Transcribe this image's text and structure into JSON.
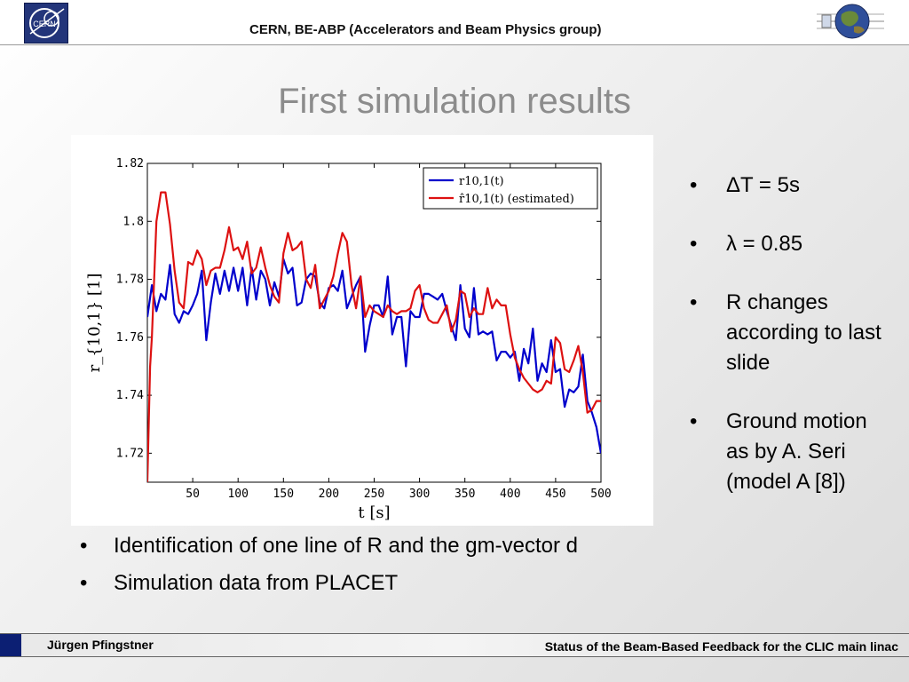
{
  "header": {
    "title": "CERN, BE-ABP (Accelerators and Beam Physics group)",
    "logo_left": "CERN",
    "logo_right_icon": "globe-icon"
  },
  "slide": {
    "title": "First simulation results"
  },
  "right_bullets": [
    {
      "text": "ΔT = 5s"
    },
    {
      "text": "λ = 0.85"
    },
    {
      "text": "R changes according to last slide"
    },
    {
      "text": "Ground motion as by A. Seri (model A [8])"
    }
  ],
  "left_bullets": [
    {
      "text": "Identification of one line of R and the gm-vector d"
    },
    {
      "text": "Simulation data from PLACET"
    }
  ],
  "footer": {
    "author": "Jürgen Pfingstner",
    "talk_title": "Status of the Beam-Based Feedback for the CLIC main linac"
  },
  "colors": {
    "series_true": "#0000cc",
    "series_est": "#dd1111",
    "footer_block": "#0c1f73",
    "title_grey": "#8c8c8c"
  },
  "chart_data": {
    "type": "line",
    "xlabel": "t [s]",
    "ylabel": "r_{10,1} [1]",
    "xlim": [
      0,
      500
    ],
    "ylim": [
      1.71,
      1.82
    ],
    "xticks": [
      50,
      100,
      150,
      200,
      250,
      300,
      350,
      400,
      450,
      500
    ],
    "yticks": [
      1.72,
      1.74,
      1.76,
      1.78,
      1.8,
      1.82
    ],
    "ytick_labels": [
      "1.72",
      "1.74",
      "1.76",
      "1.78",
      "1.8",
      "1.82"
    ],
    "legend_position": "top-right",
    "series": [
      {
        "name": "r10,1(t)",
        "color": "#0000cc",
        "x": [
          0,
          5,
          10,
          15,
          20,
          25,
          30,
          35,
          40,
          45,
          50,
          55,
          60,
          65,
          70,
          75,
          80,
          85,
          90,
          95,
          100,
          105,
          110,
          115,
          120,
          125,
          130,
          135,
          140,
          145,
          150,
          155,
          160,
          165,
          170,
          175,
          180,
          185,
          190,
          195,
          200,
          205,
          210,
          215,
          220,
          225,
          230,
          235,
          240,
          245,
          250,
          255,
          260,
          265,
          270,
          275,
          280,
          285,
          290,
          295,
          300,
          305,
          310,
          315,
          320,
          325,
          330,
          335,
          340,
          345,
          350,
          355,
          360,
          365,
          370,
          375,
          380,
          385,
          390,
          395,
          400,
          405,
          410,
          415,
          420,
          425,
          430,
          435,
          440,
          445,
          450,
          455,
          460,
          465,
          470,
          475,
          480,
          485,
          490,
          495,
          500
        ],
        "y": [
          1.767,
          1.778,
          1.769,
          1.775,
          1.773,
          1.785,
          1.768,
          1.765,
          1.769,
          1.768,
          1.771,
          1.775,
          1.783,
          1.759,
          1.772,
          1.782,
          1.775,
          1.783,
          1.776,
          1.784,
          1.776,
          1.784,
          1.771,
          1.784,
          1.773,
          1.783,
          1.78,
          1.771,
          1.779,
          1.774,
          1.787,
          1.782,
          1.784,
          1.771,
          1.772,
          1.78,
          1.782,
          1.781,
          1.772,
          1.77,
          1.777,
          1.778,
          1.776,
          1.783,
          1.77,
          1.774,
          1.778,
          1.781,
          1.755,
          1.764,
          1.771,
          1.771,
          1.767,
          1.781,
          1.761,
          1.767,
          1.767,
          1.75,
          1.769,
          1.767,
          1.767,
          1.775,
          1.775,
          1.774,
          1.773,
          1.775,
          1.769,
          1.764,
          1.759,
          1.778,
          1.763,
          1.76,
          1.777,
          1.761,
          1.762,
          1.761,
          1.762,
          1.752,
          1.755,
          1.755,
          1.753,
          1.755,
          1.745,
          1.756,
          1.751,
          1.763,
          1.745,
          1.751,
          1.748,
          1.759,
          1.748,
          1.749,
          1.736,
          1.742,
          1.741,
          1.743,
          1.754,
          1.738,
          1.734,
          1.729,
          1.72
        ]
      },
      {
        "name": "r̂10,1(t) (estimated)",
        "color": "#dd1111",
        "x": [
          0,
          3,
          5,
          10,
          15,
          20,
          25,
          30,
          35,
          40,
          45,
          50,
          55,
          60,
          65,
          70,
          75,
          80,
          85,
          90,
          95,
          100,
          105,
          110,
          115,
          120,
          125,
          130,
          135,
          140,
          145,
          150,
          155,
          160,
          165,
          170,
          175,
          180,
          185,
          190,
          195,
          200,
          205,
          210,
          215,
          220,
          225,
          230,
          235,
          240,
          245,
          250,
          255,
          260,
          265,
          270,
          275,
          280,
          285,
          290,
          295,
          300,
          305,
          310,
          315,
          320,
          325,
          330,
          335,
          340,
          345,
          350,
          355,
          360,
          365,
          370,
          375,
          380,
          385,
          390,
          395,
          400,
          405,
          410,
          415,
          420,
          425,
          430,
          435,
          440,
          445,
          450,
          455,
          460,
          465,
          470,
          475,
          480,
          485,
          490,
          495,
          500
        ],
        "y": [
          1.71,
          1.75,
          1.76,
          1.8,
          1.81,
          1.81,
          1.799,
          1.783,
          1.772,
          1.77,
          1.786,
          1.785,
          1.79,
          1.787,
          1.778,
          1.783,
          1.784,
          1.784,
          1.79,
          1.798,
          1.79,
          1.791,
          1.787,
          1.793,
          1.782,
          1.784,
          1.791,
          1.784,
          1.778,
          1.774,
          1.772,
          1.789,
          1.796,
          1.79,
          1.791,
          1.793,
          1.78,
          1.777,
          1.785,
          1.77,
          1.773,
          1.776,
          1.781,
          1.789,
          1.796,
          1.793,
          1.778,
          1.77,
          1.781,
          1.767,
          1.771,
          1.769,
          1.768,
          1.767,
          1.771,
          1.769,
          1.768,
          1.769,
          1.769,
          1.77,
          1.776,
          1.778,
          1.77,
          1.766,
          1.765,
          1.765,
          1.768,
          1.771,
          1.762,
          1.766,
          1.776,
          1.775,
          1.767,
          1.77,
          1.768,
          1.768,
          1.777,
          1.77,
          1.773,
          1.771,
          1.771,
          1.761,
          1.753,
          1.749,
          1.746,
          1.744,
          1.742,
          1.741,
          1.742,
          1.745,
          1.744,
          1.76,
          1.758,
          1.749,
          1.748,
          1.752,
          1.757,
          1.748,
          1.734,
          1.735,
          1.738,
          1.738
        ]
      }
    ]
  }
}
